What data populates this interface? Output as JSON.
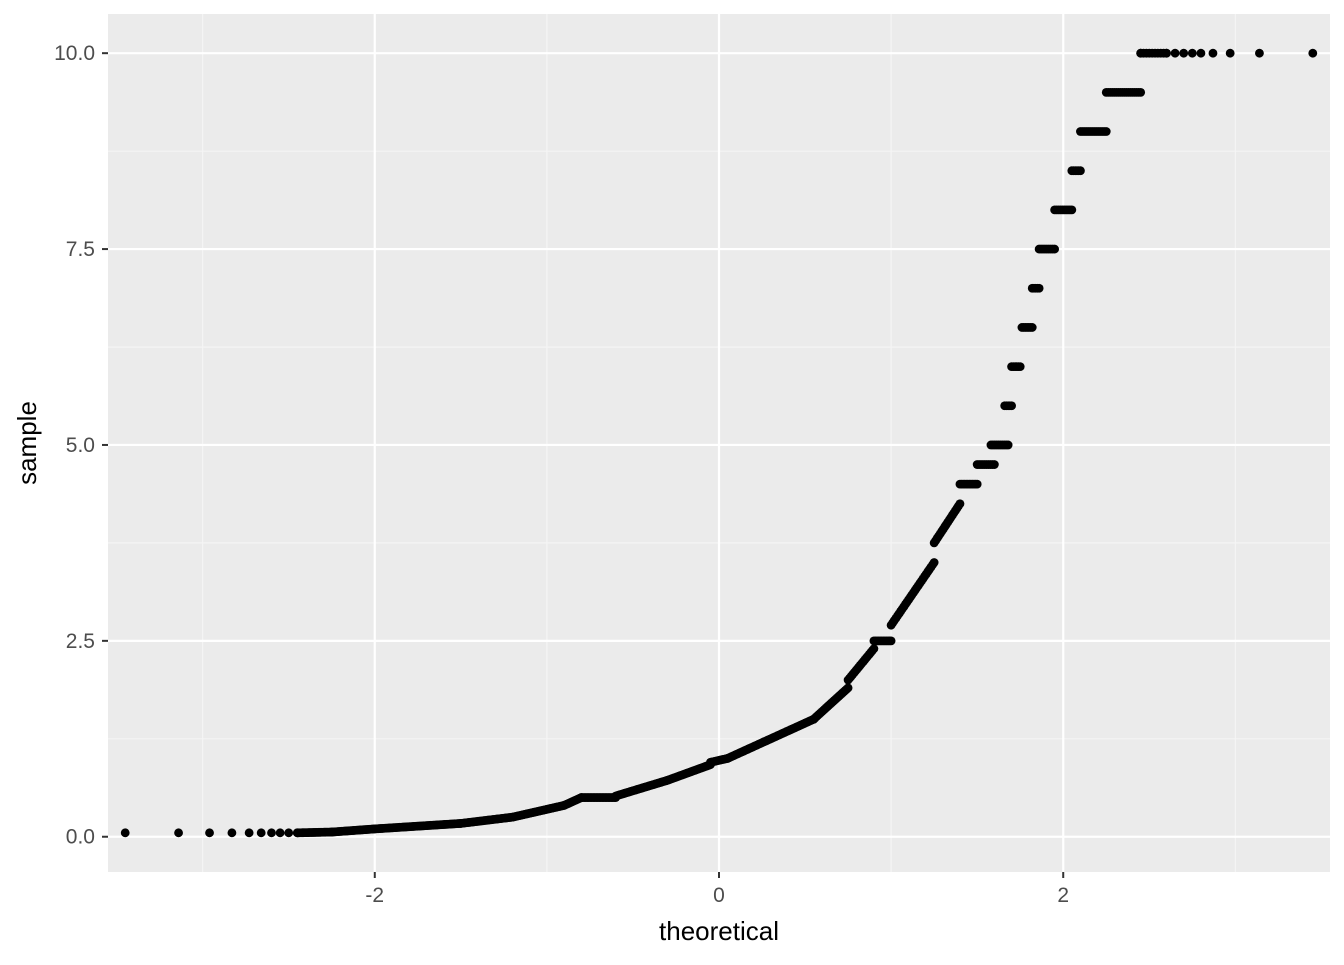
{
  "chart_data": {
    "type": "scatter",
    "title": "",
    "xlabel": "theoretical",
    "ylabel": "sample",
    "xlim": [
      -3.55,
      3.55
    ],
    "ylim": [
      -0.45,
      10.5
    ],
    "x_ticks": [
      -2,
      0,
      2
    ],
    "x_tick_labels": [
      "-2",
      "0",
      "2"
    ],
    "x_minor_ticks": [
      -3,
      -1,
      1,
      3
    ],
    "y_ticks": [
      0,
      2.5,
      5,
      7.5,
      10
    ],
    "y_tick_labels": [
      "0.0",
      "2.5",
      "5.0",
      "7.5",
      "10.0"
    ],
    "y_minor_ticks": [
      1.25,
      3.75,
      6.25,
      8.75
    ],
    "grid": true,
    "legend": "none",
    "colors": {
      "panel_background": "#ebebeb",
      "grid_major": "#ffffff",
      "grid_minor": "#f5f5f5",
      "points": "#000000",
      "axis_text": "#4d4d4d",
      "axis_title": "#000000"
    },
    "point_segments": [
      {
        "x": [
          -3.45,
          -3.14,
          -2.96,
          -2.83,
          -2.73,
          -2.66,
          -2.6,
          -2.55,
          -2.5,
          -2.45
        ],
        "y": [
          0.05,
          0.05,
          0.05,
          0.05,
          0.05,
          0.05,
          0.05,
          0.05,
          0.05,
          0.05
        ]
      },
      {
        "x": [
          -2.45,
          -2.25
        ],
        "y": [
          0.05,
          0.06
        ],
        "n": 28
      },
      {
        "x": [
          -2.25,
          -2.0
        ],
        "y": [
          0.06,
          0.1
        ],
        "n": 40
      },
      {
        "x": [
          -2.0,
          -1.5
        ],
        "y": [
          0.1,
          0.17
        ],
        "n": 70
      },
      {
        "x": [
          -1.5,
          -1.2
        ],
        "y": [
          0.17,
          0.25
        ],
        "n": 40
      },
      {
        "x": [
          -1.2,
          -0.9
        ],
        "y": [
          0.25,
          0.4
        ],
        "n": 40
      },
      {
        "x": [
          -0.9,
          -0.8
        ],
        "y": [
          0.4,
          0.5
        ],
        "n": 14
      },
      {
        "x": [
          -0.8,
          -0.6
        ],
        "y": [
          0.5,
          0.5
        ],
        "n": 24
      },
      {
        "x": [
          -0.6,
          -0.3
        ],
        "y": [
          0.52,
          0.72
        ],
        "n": 40
      },
      {
        "x": [
          -0.3,
          -0.05
        ],
        "y": [
          0.72,
          0.92
        ],
        "n": 34
      },
      {
        "x": [
          -0.05,
          0.05
        ],
        "y": [
          0.95,
          1.0
        ],
        "n": 12
      },
      {
        "x": [
          0.05,
          0.55
        ],
        "y": [
          1.0,
          1.5
        ],
        "n": 60
      },
      {
        "x": [
          0.55,
          0.75
        ],
        "y": [
          1.5,
          1.9
        ],
        "n": 26
      },
      {
        "x": [
          0.75,
          0.9
        ],
        "y": [
          2.0,
          2.4
        ],
        "n": 18
      },
      {
        "x": [
          0.9,
          1.0
        ],
        "y": [
          2.5,
          2.5
        ],
        "n": 12
      },
      {
        "x": [
          1.0,
          1.25
        ],
        "y": [
          2.7,
          3.5
        ],
        "n": 28
      },
      {
        "x": [
          1.25,
          1.4
        ],
        "y": [
          3.75,
          4.25
        ],
        "n": 18
      },
      {
        "x": [
          1.4,
          1.5
        ],
        "y": [
          4.5,
          4.5
        ],
        "n": 12
      },
      {
        "x": [
          1.5,
          1.6
        ],
        "y": [
          4.75,
          4.75
        ],
        "n": 10
      },
      {
        "x": [
          1.58,
          1.68
        ],
        "y": [
          5.0,
          5.0
        ],
        "n": 10
      },
      {
        "x": [
          1.66,
          1.7
        ],
        "y": [
          5.5,
          5.5
        ],
        "n": 5
      },
      {
        "x": [
          1.7,
          1.75
        ],
        "y": [
          6.0,
          6.0
        ],
        "n": 6
      },
      {
        "x": [
          1.76,
          1.82
        ],
        "y": [
          6.5,
          6.5
        ],
        "n": 7
      },
      {
        "x": [
          1.82,
          1.86
        ],
        "y": [
          7.0,
          7.0
        ],
        "n": 5
      },
      {
        "x": [
          1.86,
          1.95
        ],
        "y": [
          7.5,
          7.5
        ],
        "n": 9
      },
      {
        "x": [
          1.95,
          2.05
        ],
        "y": [
          8.0,
          8.0
        ],
        "n": 10
      },
      {
        "x": [
          2.05,
          2.1
        ],
        "y": [
          8.5,
          8.5
        ],
        "n": 6
      },
      {
        "x": [
          2.1,
          2.25
        ],
        "y": [
          9.0,
          9.0
        ],
        "n": 14
      },
      {
        "x": [
          2.25,
          2.45
        ],
        "y": [
          9.5,
          9.5
        ],
        "n": 18
      },
      {
        "x": [
          2.45,
          2.6,
          2.65,
          2.7,
          2.75,
          2.8,
          2.87,
          2.97,
          3.14,
          3.45
        ],
        "y": [
          10.0,
          10.0,
          10.0,
          10.0,
          10.0,
          10.0,
          10.0,
          10.0,
          10.0,
          10.0
        ]
      },
      {
        "x": [
          2.45,
          2.6
        ],
        "y": [
          10.0,
          10.0
        ],
        "n": 10
      }
    ]
  }
}
